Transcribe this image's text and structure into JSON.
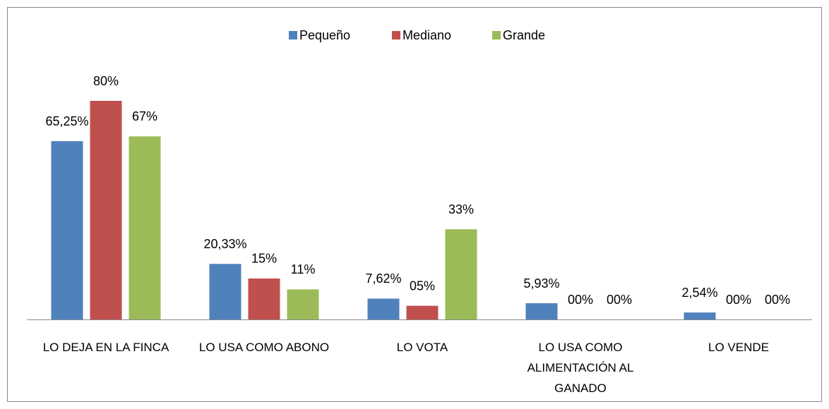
{
  "chart_data": {
    "type": "bar",
    "categories": [
      "LO DEJA EN LA FINCA",
      "LO USA COMO ABONO",
      "LO VOTA",
      "LO USA COMO ALIMENTACIÓN AL GANADO",
      "LO VENDE"
    ],
    "series": [
      {
        "name": "Pequeño",
        "color": "#4f81bd",
        "values": [
          65.25,
          20.33,
          7.62,
          5.93,
          2.54
        ],
        "value_labels": [
          "65,25%",
          "20,33%",
          "7,62%",
          "5,93%",
          "2,54%"
        ]
      },
      {
        "name": "Mediano",
        "color": "#c0504d",
        "values": [
          80,
          15,
          5,
          0,
          0
        ],
        "value_labels": [
          "80%",
          "15%",
          "05%",
          "00%",
          "00%"
        ]
      },
      {
        "name": "Grande",
        "color": "#9bbb59",
        "values": [
          67,
          11,
          33,
          0,
          0
        ],
        "value_labels": [
          "67%",
          "11%",
          "33%",
          "00%",
          "00%"
        ]
      }
    ],
    "legend": "top"
  }
}
